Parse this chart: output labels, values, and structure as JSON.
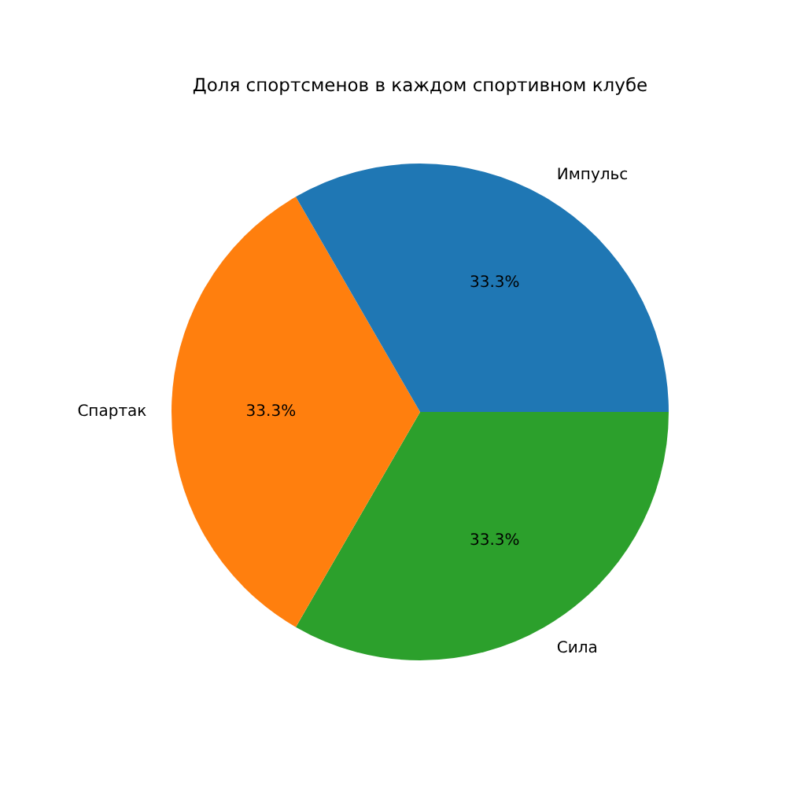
{
  "chart_data": {
    "type": "pie",
    "title": "Доля спортсменов в каждом спортивном клубе",
    "categories": [
      "Импульс",
      "Спартак",
      "Сила"
    ],
    "values": [
      33.3,
      33.3,
      33.3
    ],
    "colors": [
      "#1f77b4",
      "#ff7f0e",
      "#2ca02c"
    ],
    "value_labels": [
      "33.3%",
      "33.3%",
      "33.3%"
    ]
  }
}
